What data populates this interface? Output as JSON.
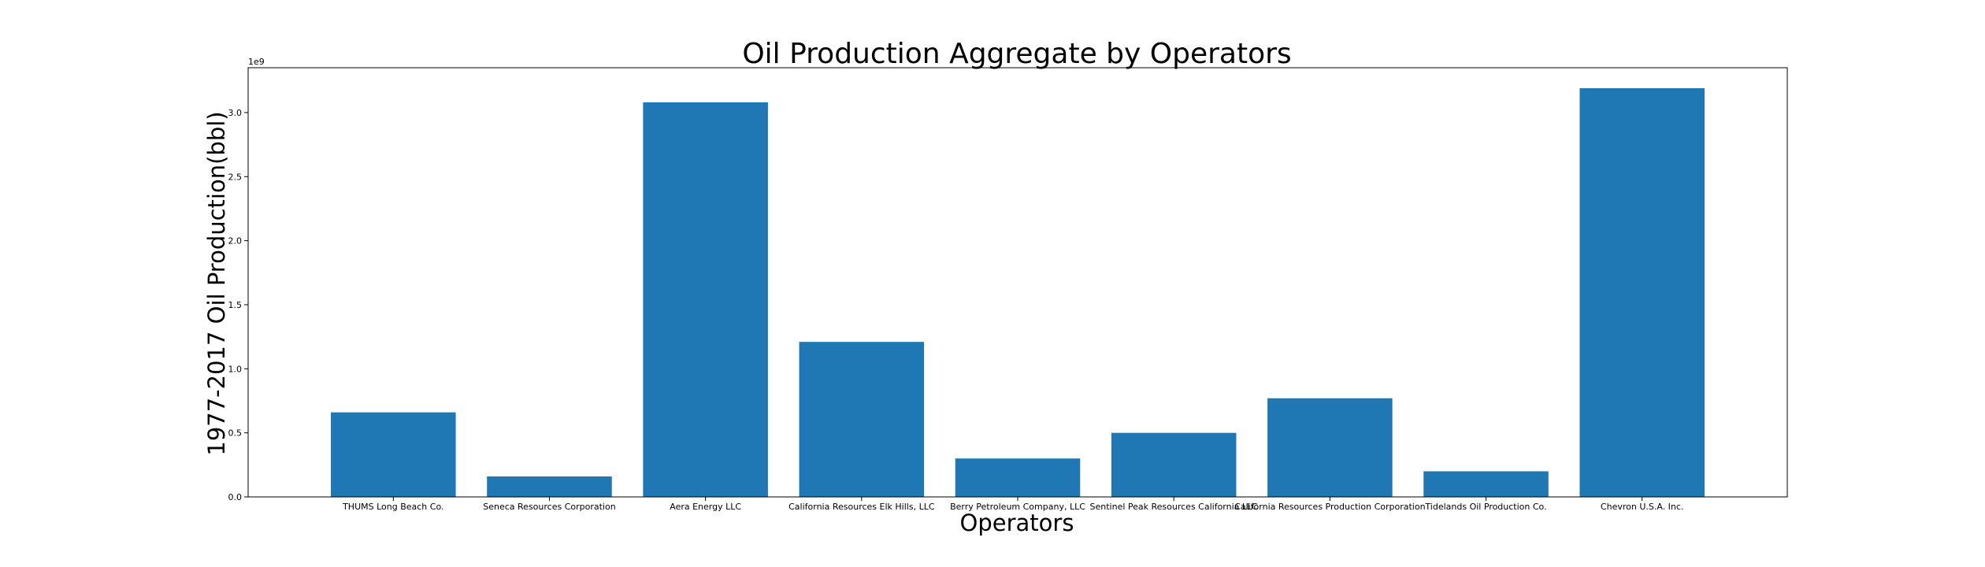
{
  "chart_data": {
    "type": "bar",
    "title": "Oil Production Aggregate by Operators",
    "xlabel": "Operators",
    "ylabel": "1977-2017 Oil Production(bbl)",
    "y_scale_label": "1e9",
    "y_multiplier": 1000000000,
    "ylim": [
      0,
      3.35
    ],
    "yticks": [
      0.0,
      0.5,
      1.0,
      1.5,
      2.0,
      2.5,
      3.0
    ],
    "ytick_labels": [
      "0.0",
      "0.5",
      "1.0",
      "1.5",
      "2.0",
      "2.5",
      "3.0"
    ],
    "categories": [
      "THUMS Long Beach Co.",
      "Seneca Resources Corporation",
      "Aera Energy LLC",
      "California Resources Elk Hills, LLC",
      "Berry Petroleum Company, LLC",
      "Sentinel Peak Resources California LLC",
      "California Resources Production Corporation",
      "Tidelands Oil Production Co.",
      "Chevron U.S.A. Inc."
    ],
    "values": [
      0.66,
      0.16,
      3.08,
      1.21,
      0.3,
      0.5,
      0.77,
      0.2,
      3.19
    ],
    "bar_color": "#1f77b4",
    "grid": false,
    "legend": "none"
  }
}
